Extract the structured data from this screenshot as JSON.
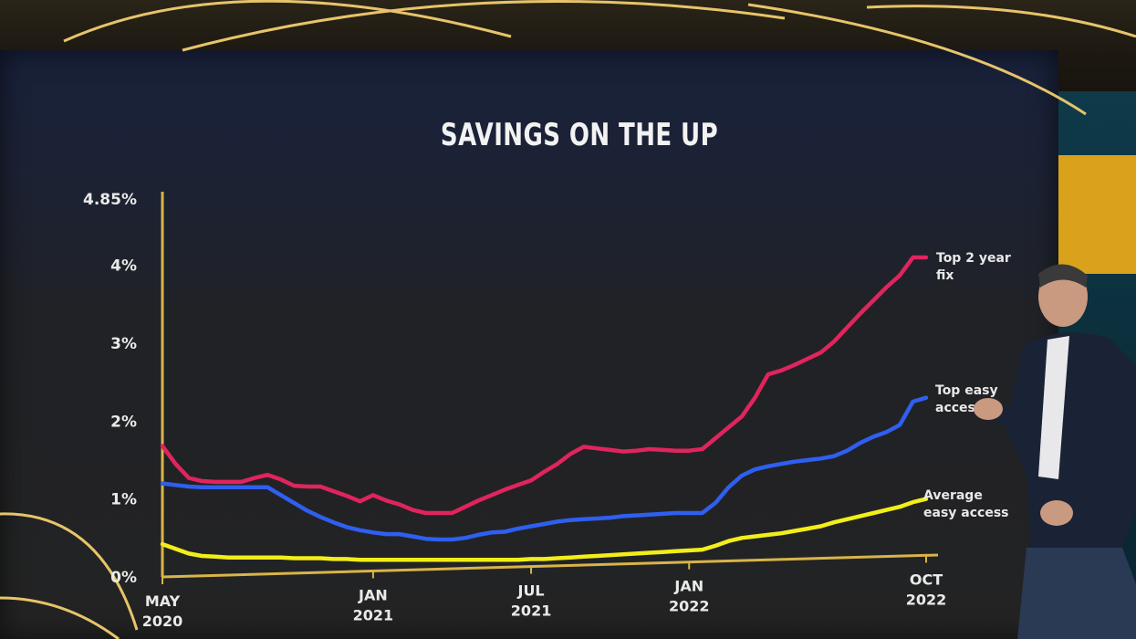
{
  "chart_data": {
    "type": "line",
    "title": "SAVINGS ON THE UP",
    "xlabel": "",
    "ylabel": "",
    "ylim": [
      0,
      4.85
    ],
    "y_ticks": [
      {
        "value": 0,
        "label": "0%"
      },
      {
        "value": 1,
        "label": "1%"
      },
      {
        "value": 2,
        "label": "2%"
      },
      {
        "value": 3,
        "label": "3%"
      },
      {
        "value": 4,
        "label": "4%"
      },
      {
        "value": 4.85,
        "label": "4.85%"
      }
    ],
    "x_range": [
      0,
      29
    ],
    "x_ticks": [
      {
        "value": 0,
        "lines": [
          "MAY",
          "2020"
        ]
      },
      {
        "value": 8,
        "lines": [
          "JAN",
          "2021"
        ]
      },
      {
        "value": 14,
        "lines": [
          "JUL",
          "2021"
        ]
      },
      {
        "value": 20,
        "lines": [
          "JAN",
          "2022"
        ]
      },
      {
        "value": 29,
        "lines": [
          "OCT",
          "2022"
        ]
      }
    ],
    "grid": false,
    "series": [
      {
        "name": "Top 2 year fix",
        "label_lines": [
          "Top 2 year",
          "fix"
        ],
        "color": "#e0245e",
        "x": [
          0,
          0.5,
          1,
          1.5,
          2,
          2.5,
          3,
          3.5,
          4,
          4.5,
          5,
          5.5,
          6,
          6.5,
          7,
          7.5,
          8,
          8.5,
          9,
          9.5,
          10,
          10.5,
          11,
          11.5,
          12,
          12.5,
          13,
          13.5,
          14,
          14.5,
          15,
          15.5,
          16,
          16.5,
          17,
          17.5,
          18,
          18.5,
          19,
          19.5,
          20,
          20.5,
          21,
          21.5,
          22,
          22.5,
          23,
          23.5,
          24,
          24.5,
          25,
          25.5,
          26,
          26.5,
          27,
          27.5,
          28,
          28.5,
          29
        ],
        "values": [
          1.68,
          1.45,
          1.27,
          1.23,
          1.22,
          1.22,
          1.22,
          1.27,
          1.31,
          1.25,
          1.17,
          1.16,
          1.16,
          1.1,
          1.04,
          0.97,
          1.05,
          0.98,
          0.93,
          0.86,
          0.82,
          0.82,
          0.82,
          0.9,
          0.98,
          1.05,
          1.12,
          1.18,
          1.24,
          1.35,
          1.45,
          1.58,
          1.67,
          1.65,
          1.63,
          1.61,
          1.62,
          1.64,
          1.63,
          1.62,
          1.62,
          1.64,
          1.78,
          1.92,
          2.06,
          2.3,
          2.6,
          2.65,
          2.72,
          2.8,
          2.88,
          3.02,
          3.2,
          3.38,
          3.55,
          3.72,
          3.87,
          4.1,
          4.1
        ]
      },
      {
        "name": "Top easy access",
        "label_lines": [
          "Top easy",
          "access"
        ],
        "color": "#2f5ff0",
        "x": [
          0,
          0.5,
          1,
          1.5,
          2,
          2.5,
          3,
          3.5,
          4,
          4.5,
          5,
          5.5,
          6,
          6.5,
          7,
          7.5,
          8,
          8.5,
          9,
          9.5,
          10,
          10.5,
          11,
          11.5,
          12,
          12.5,
          13,
          13.5,
          14,
          14.5,
          15,
          15.5,
          16,
          16.5,
          17,
          17.5,
          18,
          18.5,
          19,
          19.5,
          20,
          20.5,
          21,
          21.5,
          22,
          22.5,
          23,
          23.5,
          24,
          24.5,
          25,
          25.5,
          26,
          26.5,
          27,
          27.5,
          28,
          28.5,
          29
        ],
        "values": [
          1.2,
          1.18,
          1.16,
          1.15,
          1.15,
          1.15,
          1.15,
          1.15,
          1.15,
          1.05,
          0.95,
          0.85,
          0.77,
          0.7,
          0.64,
          0.6,
          0.57,
          0.55,
          0.55,
          0.52,
          0.49,
          0.48,
          0.48,
          0.5,
          0.54,
          0.57,
          0.58,
          0.62,
          0.65,
          0.68,
          0.71,
          0.73,
          0.74,
          0.75,
          0.76,
          0.78,
          0.79,
          0.8,
          0.81,
          0.82,
          0.82,
          0.82,
          0.95,
          1.15,
          1.3,
          1.38,
          1.42,
          1.45,
          1.48,
          1.5,
          1.52,
          1.55,
          1.62,
          1.72,
          1.8,
          1.86,
          1.95,
          2.25,
          2.3
        ]
      },
      {
        "name": "Average easy access",
        "label_lines": [
          "Average",
          "easy access"
        ],
        "color": "#f2ee1a",
        "x": [
          0,
          0.5,
          1,
          1.5,
          2,
          2.5,
          3,
          3.5,
          4,
          4.5,
          5,
          5.5,
          6,
          6.5,
          7,
          7.5,
          8,
          8.5,
          9,
          9.5,
          10,
          10.5,
          11,
          11.5,
          12,
          12.5,
          13,
          13.5,
          14,
          14.5,
          15,
          15.5,
          16,
          16.5,
          17,
          17.5,
          18,
          18.5,
          19,
          19.5,
          20,
          20.5,
          21,
          21.5,
          22,
          22.5,
          23,
          23.5,
          24,
          24.5,
          25,
          25.5,
          26,
          26.5,
          27,
          27.5,
          28,
          28.5,
          29
        ],
        "values": [
          0.42,
          0.36,
          0.3,
          0.27,
          0.26,
          0.25,
          0.25,
          0.25,
          0.25,
          0.25,
          0.24,
          0.24,
          0.24,
          0.23,
          0.23,
          0.22,
          0.22,
          0.22,
          0.22,
          0.22,
          0.22,
          0.22,
          0.22,
          0.22,
          0.22,
          0.22,
          0.22,
          0.22,
          0.23,
          0.23,
          0.24,
          0.25,
          0.26,
          0.27,
          0.28,
          0.29,
          0.3,
          0.31,
          0.32,
          0.33,
          0.34,
          0.35,
          0.4,
          0.46,
          0.5,
          0.52,
          0.54,
          0.56,
          0.59,
          0.62,
          0.65,
          0.7,
          0.74,
          0.78,
          0.82,
          0.86,
          0.9,
          0.96,
          1.0
        ]
      }
    ]
  }
}
